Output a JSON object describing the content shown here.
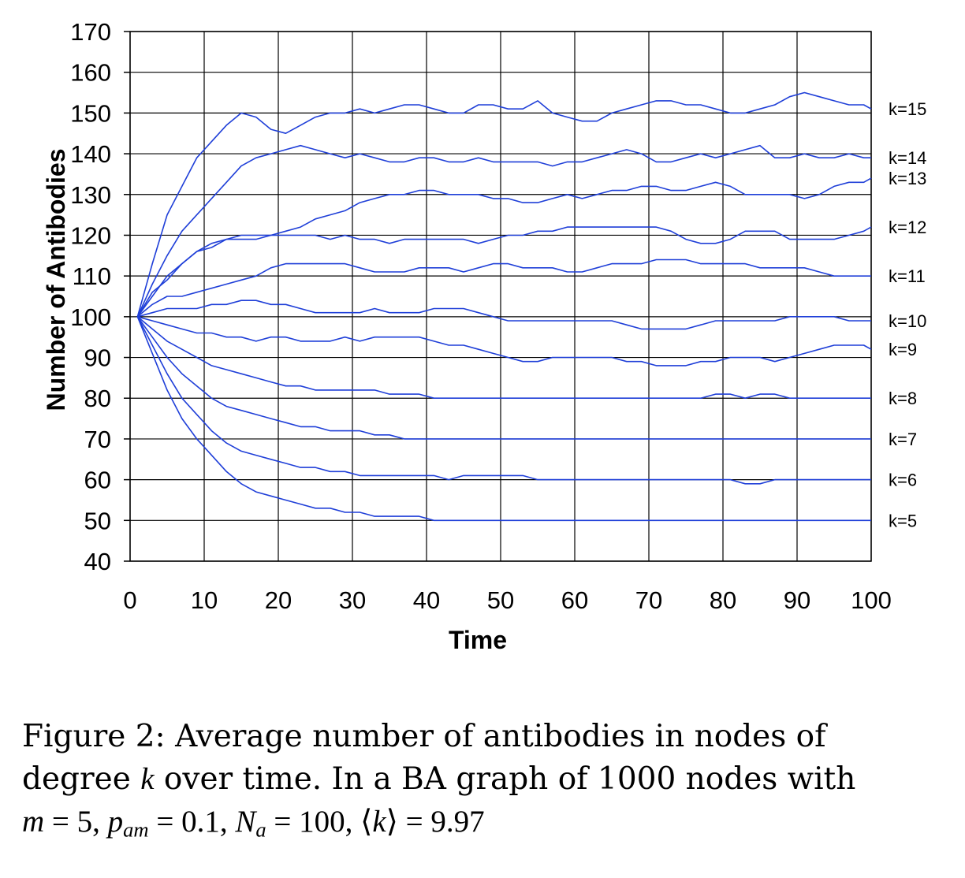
{
  "chart_data": {
    "type": "line",
    "xlabel": "Time",
    "ylabel": "Number of Antibodies",
    "xlim": [
      0,
      100
    ],
    "ylim": [
      40,
      170
    ],
    "xticks": [
      0,
      10,
      20,
      30,
      40,
      50,
      60,
      70,
      80,
      90,
      100
    ],
    "yticks": [
      40,
      50,
      60,
      70,
      80,
      90,
      100,
      110,
      120,
      130,
      140,
      150,
      160,
      170
    ],
    "grid": true,
    "line_color": "#1f3fd8",
    "series": [
      {
        "name": "k=15",
        "x": [
          1,
          3,
          5,
          7,
          9,
          11,
          13,
          15,
          17,
          19,
          21,
          23,
          25,
          27,
          29,
          31,
          33,
          35,
          37,
          39,
          41,
          43,
          45,
          47,
          49,
          51,
          53,
          55,
          57,
          59,
          61,
          63,
          65,
          67,
          69,
          71,
          73,
          75,
          77,
          79,
          81,
          83,
          85,
          87,
          89,
          91,
          93,
          95,
          97,
          99,
          100
        ],
        "y": [
          100,
          113,
          125,
          132,
          139,
          143,
          147,
          150,
          149,
          146,
          145,
          147,
          149,
          150,
          150,
          151,
          150,
          151,
          152,
          152,
          151,
          150,
          150,
          152,
          152,
          151,
          151,
          153,
          150,
          149,
          148,
          148,
          150,
          151,
          152,
          153,
          153,
          152,
          152,
          151,
          150,
          150,
          151,
          152,
          154,
          155,
          154,
          153,
          152,
          152,
          151
        ]
      },
      {
        "name": "k=14",
        "x": [
          1,
          3,
          5,
          7,
          9,
          11,
          13,
          15,
          17,
          19,
          21,
          23,
          25,
          27,
          29,
          31,
          33,
          35,
          37,
          39,
          41,
          43,
          45,
          47,
          49,
          51,
          53,
          55,
          57,
          59,
          61,
          63,
          65,
          67,
          69,
          71,
          73,
          75,
          77,
          79,
          81,
          83,
          85,
          87,
          89,
          91,
          93,
          95,
          97,
          99,
          100
        ],
        "y": [
          100,
          108,
          115,
          121,
          125,
          129,
          133,
          137,
          139,
          140,
          141,
          142,
          141,
          140,
          139,
          140,
          139,
          138,
          138,
          139,
          139,
          138,
          138,
          139,
          138,
          138,
          138,
          138,
          137,
          138,
          138,
          139,
          140,
          141,
          140,
          138,
          138,
          139,
          140,
          139,
          140,
          141,
          142,
          139,
          139,
          140,
          139,
          139,
          140,
          139,
          139
        ]
      },
      {
        "name": "k=13",
        "x": [
          1,
          3,
          5,
          7,
          9,
          11,
          13,
          15,
          17,
          19,
          21,
          23,
          25,
          27,
          29,
          31,
          33,
          35,
          37,
          39,
          41,
          43,
          45,
          47,
          49,
          51,
          53,
          55,
          57,
          59,
          61,
          63,
          65,
          67,
          69,
          71,
          73,
          75,
          77,
          79,
          81,
          83,
          85,
          87,
          89,
          91,
          93,
          95,
          97,
          99,
          100
        ],
        "y": [
          100,
          106,
          109,
          113,
          116,
          117,
          119,
          120,
          120,
          120,
          121,
          122,
          124,
          125,
          126,
          128,
          129,
          130,
          130,
          131,
          131,
          130,
          130,
          130,
          129,
          129,
          128,
          128,
          129,
          130,
          129,
          130,
          131,
          131,
          132,
          132,
          131,
          131,
          132,
          133,
          132,
          130,
          130,
          130,
          130,
          129,
          130,
          132,
          133,
          133,
          134
        ]
      },
      {
        "name": "k=12",
        "x": [
          1,
          3,
          5,
          7,
          9,
          11,
          13,
          15,
          17,
          19,
          21,
          23,
          25,
          27,
          29,
          31,
          33,
          35,
          37,
          39,
          41,
          43,
          45,
          47,
          49,
          51,
          53,
          55,
          57,
          59,
          61,
          63,
          65,
          67,
          69,
          71,
          73,
          75,
          77,
          79,
          81,
          83,
          85,
          87,
          89,
          91,
          93,
          95,
          97,
          99,
          100
        ],
        "y": [
          100,
          105,
          110,
          113,
          116,
          118,
          119,
          119,
          119,
          120,
          120,
          120,
          120,
          119,
          120,
          119,
          119,
          118,
          119,
          119,
          119,
          119,
          119,
          118,
          119,
          120,
          120,
          121,
          121,
          122,
          122,
          122,
          122,
          122,
          122,
          122,
          121,
          119,
          118,
          118,
          119,
          121,
          121,
          121,
          119,
          119,
          119,
          119,
          120,
          121,
          122
        ]
      },
      {
        "name": "k=11",
        "x": [
          1,
          3,
          5,
          7,
          9,
          11,
          13,
          15,
          17,
          19,
          21,
          23,
          25,
          27,
          29,
          31,
          33,
          35,
          37,
          39,
          41,
          43,
          45,
          47,
          49,
          51,
          53,
          55,
          57,
          59,
          61,
          63,
          65,
          67,
          69,
          71,
          73,
          75,
          77,
          79,
          81,
          83,
          85,
          87,
          89,
          91,
          93,
          95,
          97,
          99,
          100
        ],
        "y": [
          100,
          103,
          105,
          105,
          106,
          107,
          108,
          109,
          110,
          112,
          113,
          113,
          113,
          113,
          113,
          112,
          111,
          111,
          111,
          112,
          112,
          112,
          111,
          112,
          113,
          113,
          112,
          112,
          112,
          111,
          111,
          112,
          113,
          113,
          113,
          114,
          114,
          114,
          113,
          113,
          113,
          113,
          112,
          112,
          112,
          112,
          111,
          110,
          110,
          110,
          110
        ]
      },
      {
        "name": "k=10",
        "x": [
          1,
          3,
          5,
          7,
          9,
          11,
          13,
          15,
          17,
          19,
          21,
          23,
          25,
          27,
          29,
          31,
          33,
          35,
          37,
          39,
          41,
          43,
          45,
          47,
          49,
          51,
          53,
          55,
          57,
          59,
          61,
          63,
          65,
          67,
          69,
          71,
          73,
          75,
          77,
          79,
          81,
          83,
          85,
          87,
          89,
          91,
          93,
          95,
          97,
          99,
          100
        ],
        "y": [
          100,
          101,
          102,
          102,
          102,
          103,
          103,
          104,
          104,
          103,
          103,
          102,
          101,
          101,
          101,
          101,
          102,
          101,
          101,
          101,
          102,
          102,
          102,
          101,
          100,
          99,
          99,
          99,
          99,
          99,
          99,
          99,
          99,
          98,
          97,
          97,
          97,
          97,
          98,
          99,
          99,
          99,
          99,
          99,
          100,
          100,
          100,
          100,
          99,
          99,
          99
        ]
      },
      {
        "name": "k=9",
        "x": [
          1,
          3,
          5,
          7,
          9,
          11,
          13,
          15,
          17,
          19,
          21,
          23,
          25,
          27,
          29,
          31,
          33,
          35,
          37,
          39,
          41,
          43,
          45,
          47,
          49,
          51,
          53,
          55,
          57,
          59,
          61,
          63,
          65,
          67,
          69,
          71,
          73,
          75,
          77,
          79,
          81,
          83,
          85,
          87,
          89,
          91,
          93,
          95,
          97,
          99,
          100
        ],
        "y": [
          100,
          99,
          98,
          97,
          96,
          96,
          95,
          95,
          94,
          95,
          95,
          94,
          94,
          94,
          95,
          94,
          95,
          95,
          95,
          95,
          94,
          93,
          93,
          92,
          91,
          90,
          89,
          89,
          90,
          90,
          90,
          90,
          90,
          89,
          89,
          88,
          88,
          88,
          89,
          89,
          90,
          90,
          90,
          89,
          90,
          91,
          92,
          93,
          93,
          93,
          92
        ]
      },
      {
        "name": "k=8",
        "x": [
          1,
          3,
          5,
          7,
          9,
          11,
          13,
          15,
          17,
          19,
          21,
          23,
          25,
          27,
          29,
          31,
          33,
          35,
          37,
          39,
          41,
          43,
          45,
          47,
          49,
          51,
          53,
          55,
          57,
          59,
          61,
          63,
          65,
          67,
          69,
          71,
          73,
          75,
          77,
          79,
          81,
          83,
          85,
          87,
          89,
          91,
          93,
          95,
          97,
          99,
          100
        ],
        "y": [
          100,
          97,
          94,
          92,
          90,
          88,
          87,
          86,
          85,
          84,
          83,
          83,
          82,
          82,
          82,
          82,
          82,
          81,
          81,
          81,
          80,
          80,
          80,
          80,
          80,
          80,
          80,
          80,
          80,
          80,
          80,
          80,
          80,
          80,
          80,
          80,
          80,
          80,
          80,
          81,
          81,
          80,
          81,
          81,
          80,
          80,
          80,
          80,
          80,
          80,
          80
        ]
      },
      {
        "name": "k=7",
        "x": [
          1,
          3,
          5,
          7,
          9,
          11,
          13,
          15,
          17,
          19,
          21,
          23,
          25,
          27,
          29,
          31,
          33,
          35,
          37,
          39,
          41,
          43,
          45,
          47,
          49,
          51,
          53,
          55,
          57,
          59,
          61,
          63,
          65,
          67,
          69,
          71,
          73,
          75,
          77,
          79,
          81,
          83,
          85,
          87,
          89,
          91,
          93,
          95,
          97,
          99,
          100
        ],
        "y": [
          100,
          95,
          90,
          86,
          83,
          80,
          78,
          77,
          76,
          75,
          74,
          73,
          73,
          72,
          72,
          72,
          71,
          71,
          70,
          70,
          70,
          70,
          70,
          70,
          70,
          70,
          70,
          70,
          70,
          70,
          70,
          70,
          70,
          70,
          70,
          70,
          70,
          70,
          70,
          70,
          70,
          70,
          70,
          70,
          70,
          70,
          70,
          70,
          70,
          70,
          70
        ]
      },
      {
        "name": "k=6",
        "x": [
          1,
          3,
          5,
          7,
          9,
          11,
          13,
          15,
          17,
          19,
          21,
          23,
          25,
          27,
          29,
          31,
          33,
          35,
          37,
          39,
          41,
          43,
          45,
          47,
          49,
          51,
          53,
          55,
          57,
          59,
          61,
          63,
          65,
          67,
          69,
          71,
          73,
          75,
          77,
          79,
          81,
          83,
          85,
          87,
          89,
          91,
          93,
          95,
          97,
          99,
          100
        ],
        "y": [
          100,
          93,
          86,
          80,
          76,
          72,
          69,
          67,
          66,
          65,
          64,
          63,
          63,
          62,
          62,
          61,
          61,
          61,
          61,
          61,
          61,
          60,
          61,
          61,
          61,
          61,
          61,
          60,
          60,
          60,
          60,
          60,
          60,
          60,
          60,
          60,
          60,
          60,
          60,
          60,
          60,
          59,
          59,
          60,
          60,
          60,
          60,
          60,
          60,
          60,
          60
        ]
      },
      {
        "name": "k=5",
        "x": [
          1,
          3,
          5,
          7,
          9,
          11,
          13,
          15,
          17,
          19,
          21,
          23,
          25,
          27,
          29,
          31,
          33,
          35,
          37,
          39,
          41,
          43,
          45,
          47,
          49,
          51,
          53,
          55,
          57,
          59,
          61,
          63,
          65,
          67,
          69,
          71,
          73,
          75,
          77,
          79,
          81,
          83,
          85,
          87,
          89,
          91,
          93,
          95,
          97,
          99,
          100
        ],
        "y": [
          100,
          91,
          82,
          75,
          70,
          66,
          62,
          59,
          57,
          56,
          55,
          54,
          53,
          53,
          52,
          52,
          51,
          51,
          51,
          51,
          50,
          50,
          50,
          50,
          50,
          50,
          50,
          50,
          50,
          50,
          50,
          50,
          50,
          50,
          50,
          50,
          50,
          50,
          50,
          50,
          50,
          50,
          50,
          50,
          50,
          50,
          50,
          50,
          50,
          50,
          50
        ]
      }
    ]
  },
  "caption": {
    "line1": "Figure 2:  Average number of antibodies in nodes of",
    "line2_pre": "degree ",
    "line2_k": "k",
    "line2_post": " over time. In a BA graph of 1000 nodes with",
    "line3_m": "m",
    "line3_a": " = 5, ",
    "line3_p": "p",
    "line3_psub": "am",
    "line3_b": " = 0.1, ",
    "line3_N": "N",
    "line3_Nsub": "a",
    "line3_c": " = 100, ⟨",
    "line3_k": "k",
    "line3_d": "⟩ = 9.97"
  }
}
